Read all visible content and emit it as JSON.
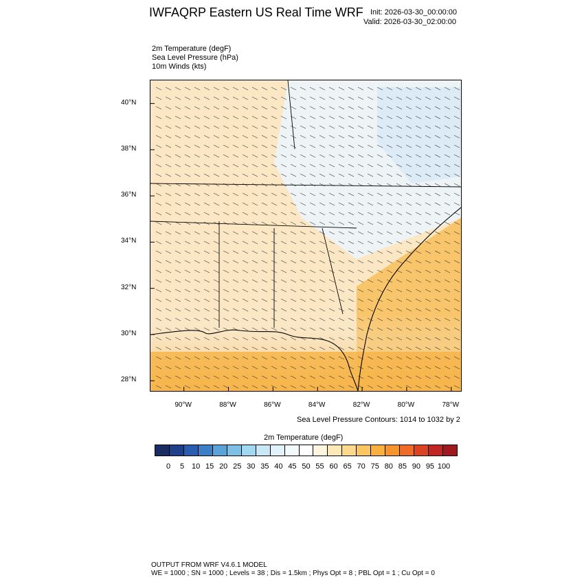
{
  "header": {
    "title": "IWFAQRP Eastern US Real Time WRF",
    "init": "Init: 2026-03-30_00:00:00",
    "valid": "Valid: 2026-03-30_02:00:00"
  },
  "fields": {
    "temp": "2m Temperature   (degF)",
    "slp": "Sea Level Pressure   (hPa)",
    "wind": "10m Winds   (kts)"
  },
  "map": {
    "lat_ticks": [
      "40°N",
      "38°N",
      "36°N",
      "34°N",
      "32°N",
      "30°N",
      "28°N"
    ],
    "lon_ticks": [
      "90°W",
      "88°W",
      "86°W",
      "84°W",
      "82°W",
      "80°W",
      "78°W"
    ],
    "lat_values": [
      40,
      38,
      36,
      34,
      32,
      30,
      28
    ],
    "lon_values": [
      -90,
      -88,
      -86,
      -84,
      -82,
      -80,
      -78
    ],
    "lat_range": [
      27.5,
      41
    ],
    "lon_range": [
      -91.5,
      -77.5
    ],
    "colors": {
      "cool": "#dcebf6",
      "mild": "#f6efe2",
      "warm": "#fbd99a",
      "hot": "#f7b54a"
    }
  },
  "slp_note": "Sea Level Pressure Contours: 1014 to 1032 by 2",
  "colorbar": {
    "title": "2m Temperature  (degF)",
    "labels": [
      "0",
      "5",
      "10",
      "15",
      "20",
      "25",
      "30",
      "35",
      "40",
      "45",
      "50",
      "55",
      "60",
      "65",
      "70",
      "75",
      "80",
      "85",
      "90",
      "95",
      "100"
    ],
    "colors": [
      "#1b2c62",
      "#1f3f8a",
      "#2a5cb0",
      "#3b7fc6",
      "#5aa3d8",
      "#7cc0e6",
      "#a3d8f2",
      "#c8e8f6",
      "#e2f2fa",
      "#f4f9fc",
      "#ffffff",
      "#fff6e0",
      "#fde9b8",
      "#fcd98c",
      "#fbc660",
      "#f9b03e",
      "#f7942e",
      "#ef6c27",
      "#dc4323",
      "#c22624",
      "#9e1a1f"
    ]
  },
  "footer": {
    "line1": "OUTPUT FROM WRF V4.6.1 MODEL",
    "line2": "WE = 1000 ; SN = 1000 ; Levels = 38 ; Dis = 1.5km ; Phys Opt = 8 ; PBL Opt = 1 ; Cu Opt = 0"
  }
}
